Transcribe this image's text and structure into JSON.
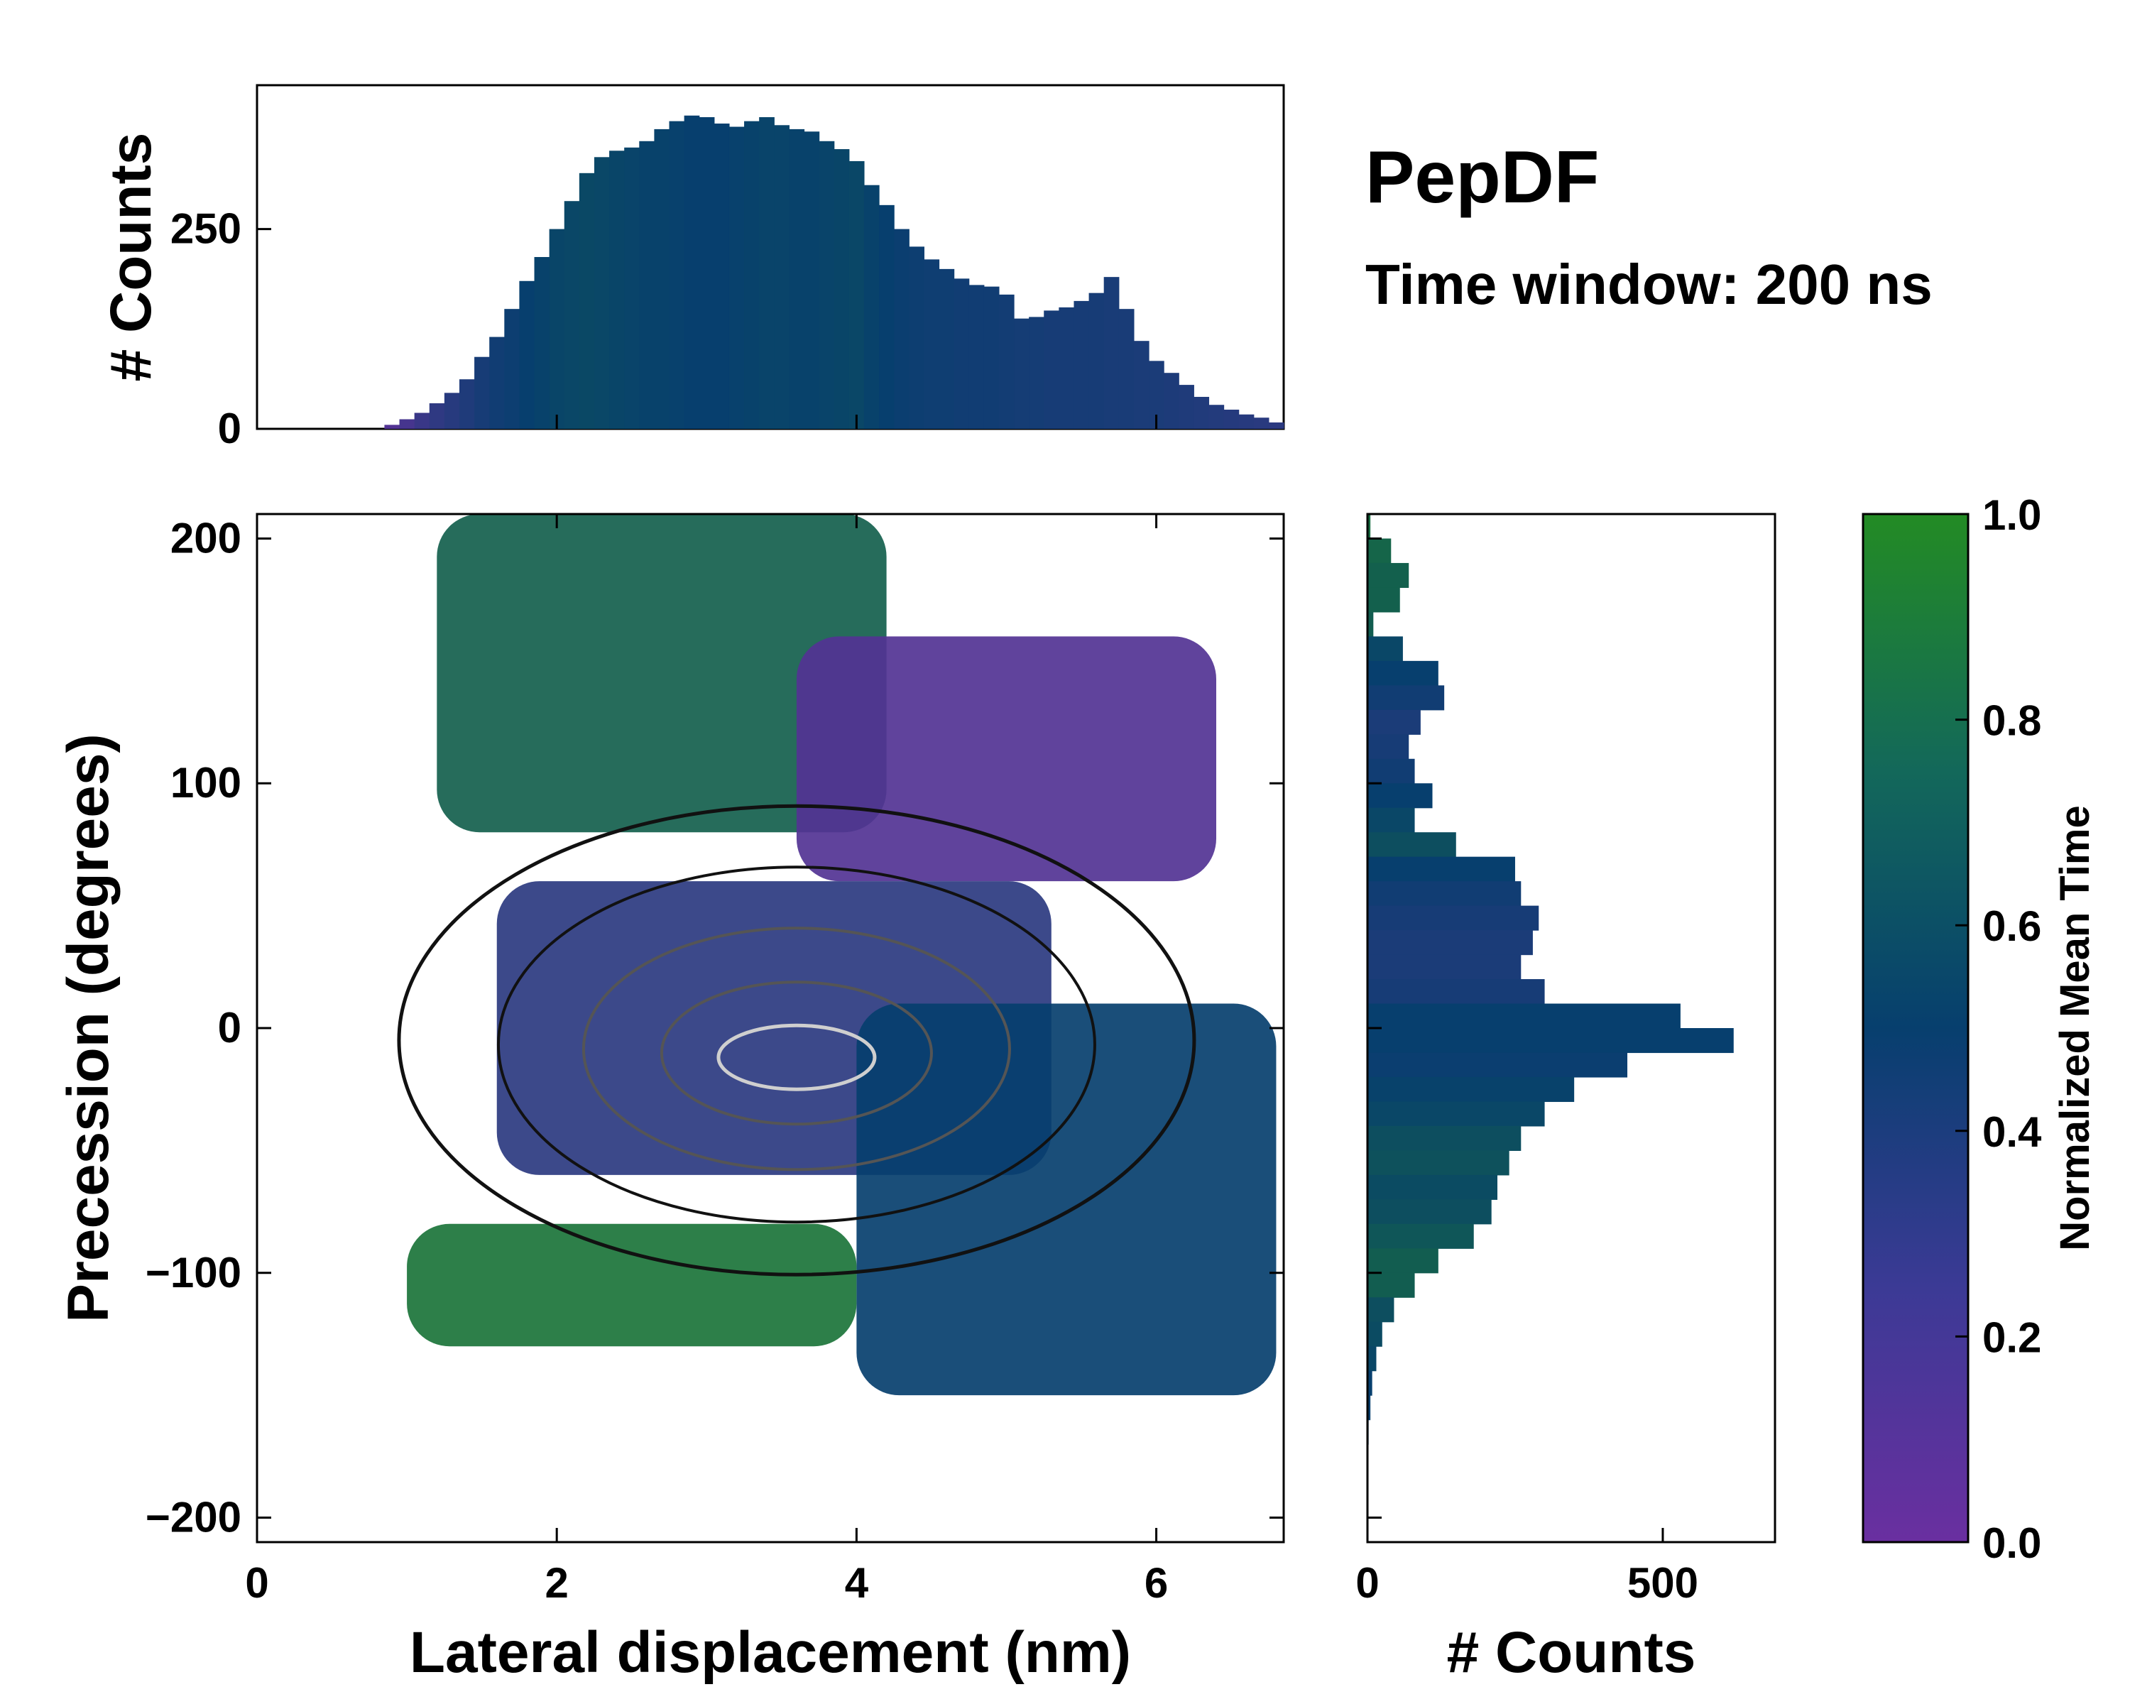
{
  "title": "PepDF",
  "subtitle": "Time window: 200 ns",
  "colors": {
    "cmap_low": "#6a2fa0",
    "cmap_mid": "#073f6e",
    "cmap_high": "#238b24",
    "contour_outer": "#111111",
    "contour_inner": "#555555",
    "contour_core": "#cfcfcf"
  },
  "chart_data": [
    {
      "id": "joint",
      "type": "heatmap",
      "title": "",
      "xlabel": "Lateral displacement (nm)",
      "ylabel": "Precession (degrees)",
      "xlim": [
        0,
        6.85
      ],
      "ylim": [
        -210,
        210
      ],
      "xticks": [
        "0",
        "2",
        "4",
        "6"
      ],
      "xtick_values": [
        0,
        2,
        4,
        6
      ],
      "yticks": [
        "200",
        "100",
        "0",
        "−100",
        "−200"
      ],
      "ytick_values": [
        200,
        100,
        0,
        -100,
        -200
      ],
      "color_regions": [
        {
          "name": "upper-left",
          "x": [
            1.2,
            4.2
          ],
          "y": [
            80,
            210
          ],
          "value": 0.72
        },
        {
          "name": "upper-right",
          "x": [
            3.6,
            6.4
          ],
          "y": [
            60,
            160
          ],
          "value": 0.12
        },
        {
          "name": "central",
          "x": [
            1.6,
            5.3
          ],
          "y": [
            -60,
            60
          ],
          "value": 0.32
        },
        {
          "name": "lower-right",
          "x": [
            4.0,
            6.8
          ],
          "y": [
            -150,
            10
          ],
          "value": 0.5
        },
        {
          "name": "lower-left",
          "x": [
            1.0,
            4.0
          ],
          "y": [
            -130,
            -80
          ],
          "value": 0.85
        }
      ],
      "density_peak": {
        "x": 3.6,
        "y": -5
      }
    },
    {
      "id": "x-marginal",
      "type": "bar",
      "title": "",
      "xlabel": "",
      "ylabel": "# Counts",
      "ylim": [
        0,
        430
      ],
      "yticks": [
        "0",
        "250"
      ],
      "ytick_values": [
        0,
        250
      ],
      "x": [
        0.9,
        1.0,
        1.1,
        1.2,
        1.3,
        1.4,
        1.5,
        1.6,
        1.7,
        1.8,
        1.9,
        2.0,
        2.1,
        2.2,
        2.3,
        2.4,
        2.5,
        2.6,
        2.7,
        2.8,
        2.9,
        3.0,
        3.1,
        3.2,
        3.3,
        3.4,
        3.5,
        3.6,
        3.7,
        3.8,
        3.9,
        4.0,
        4.1,
        4.2,
        4.3,
        4.4,
        4.5,
        4.6,
        4.7,
        4.8,
        4.9,
        5.0,
        5.1,
        5.2,
        5.3,
        5.4,
        5.5,
        5.6,
        5.7,
        5.8,
        5.9,
        6.0,
        6.1,
        6.2,
        6.3,
        6.4,
        6.5,
        6.6,
        6.7,
        6.8
      ],
      "values": [
        5,
        12,
        20,
        32,
        45,
        62,
        90,
        115,
        150,
        185,
        215,
        250,
        285,
        320,
        340,
        348,
        352,
        360,
        375,
        385,
        392,
        390,
        382,
        378,
        385,
        390,
        380,
        375,
        372,
        360,
        350,
        335,
        305,
        280,
        250,
        228,
        212,
        200,
        188,
        180,
        178,
        168,
        138,
        140,
        148,
        152,
        160,
        170,
        190,
        150,
        110,
        85,
        70,
        55,
        40,
        30,
        24,
        18,
        14,
        8
      ],
      "color_values": [
        0.12,
        0.18,
        0.25,
        0.3,
        0.34,
        0.38,
        0.42,
        0.45,
        0.47,
        0.5,
        0.52,
        0.54,
        0.55,
        0.56,
        0.55,
        0.54,
        0.53,
        0.52,
        0.52,
        0.51,
        0.5,
        0.5,
        0.5,
        0.51,
        0.52,
        0.53,
        0.53,
        0.52,
        0.52,
        0.53,
        0.54,
        0.55,
        0.52,
        0.5,
        0.48,
        0.47,
        0.46,
        0.46,
        0.45,
        0.45,
        0.45,
        0.44,
        0.43,
        0.43,
        0.42,
        0.42,
        0.42,
        0.42,
        0.41,
        0.41,
        0.4,
        0.4,
        0.39,
        0.38,
        0.37,
        0.36,
        0.35,
        0.34,
        0.33,
        0.32
      ]
    },
    {
      "id": "y-marginal",
      "type": "bar",
      "title": "",
      "xlabel": "# Counts",
      "ylabel": "",
      "xlim": [
        0,
        690
      ],
      "xticks": [
        "0",
        "500"
      ],
      "xtick_values": [
        0,
        500
      ],
      "y": [
        205,
        195,
        185,
        175,
        165,
        155,
        145,
        135,
        125,
        115,
        105,
        95,
        85,
        75,
        65,
        55,
        45,
        35,
        25,
        15,
        5,
        -5,
        -15,
        -25,
        -35,
        -45,
        -55,
        -65,
        -75,
        -85,
        -95,
        -105,
        -115,
        -125,
        -135,
        -145,
        -155,
        -165
      ],
      "values": [
        5,
        40,
        70,
        55,
        10,
        60,
        120,
        130,
        90,
        70,
        80,
        110,
        80,
        150,
        250,
        260,
        290,
        280,
        260,
        300,
        530,
        620,
        440,
        350,
        300,
        260,
        240,
        220,
        210,
        180,
        120,
        80,
        45,
        25,
        15,
        8,
        5,
        2
      ],
      "color_values": [
        0.8,
        0.75,
        0.72,
        0.72,
        0.7,
        0.55,
        0.5,
        0.45,
        0.4,
        0.42,
        0.45,
        0.5,
        0.55,
        0.6,
        0.5,
        0.45,
        0.42,
        0.4,
        0.4,
        0.42,
        0.5,
        0.5,
        0.48,
        0.52,
        0.55,
        0.6,
        0.62,
        0.58,
        0.6,
        0.65,
        0.7,
        0.7,
        0.6,
        0.58,
        0.55,
        0.5,
        0.5,
        0.5
      ]
    },
    {
      "id": "colorbar",
      "type": "heatmap",
      "title": "",
      "ylabel": "Normalized Mean Time",
      "ylim": [
        0,
        1
      ],
      "yticks": [
        "0.0",
        "0.2",
        "0.4",
        "0.6",
        "0.8",
        "1.0"
      ],
      "ytick_values": [
        0,
        0.2,
        0.4,
        0.6,
        0.8,
        1.0
      ]
    }
  ]
}
